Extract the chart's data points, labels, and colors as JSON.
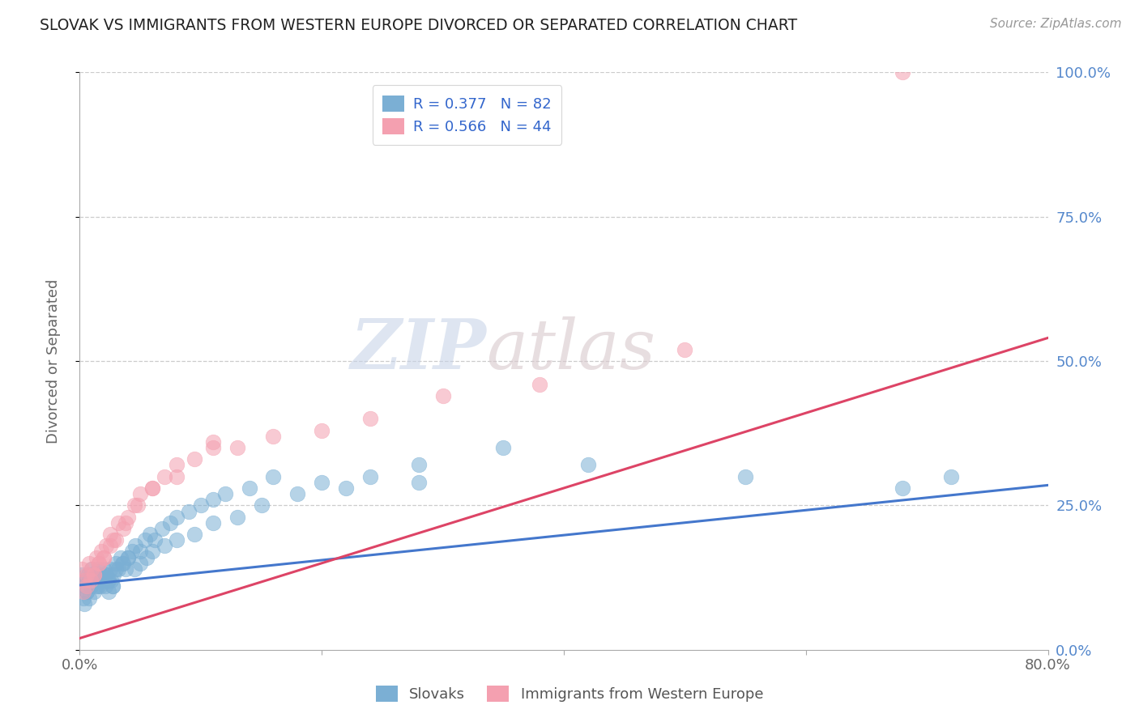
{
  "title": "SLOVAK VS IMMIGRANTS FROM WESTERN EUROPE DIVORCED OR SEPARATED CORRELATION CHART",
  "source": "Source: ZipAtlas.com",
  "ylabel": "Divorced or Separated",
  "xlim": [
    0.0,
    0.8
  ],
  "ylim": [
    0.0,
    1.0
  ],
  "xtick_positions": [
    0.0,
    0.2,
    0.4,
    0.6,
    0.8
  ],
  "xtick_labels": [
    "0.0%",
    "",
    "",
    "",
    "80.0%"
  ],
  "ytick_positions": [
    0.0,
    0.25,
    0.5,
    0.75,
    1.0
  ],
  "ytick_labels_right": [
    "0.0%",
    "25.0%",
    "50.0%",
    "75.0%",
    "100.0%"
  ],
  "blue_R": 0.377,
  "blue_N": 82,
  "pink_R": 0.566,
  "pink_N": 44,
  "blue_color": "#7bafd4",
  "pink_color": "#f4a0b0",
  "blue_line_color": "#4477cc",
  "pink_line_color": "#dd4466",
  "background_color": "#ffffff",
  "grid_color": "#cccccc",
  "title_color": "#222222",
  "axis_color": "#aaaaaa",
  "tick_color": "#666666",
  "legend_label_blue": "Slovaks",
  "legend_label_pink": "Immigrants from Western Europe",
  "blue_scatter_x": [
    0.002,
    0.004,
    0.005,
    0.006,
    0.007,
    0.008,
    0.009,
    0.01,
    0.011,
    0.012,
    0.013,
    0.014,
    0.015,
    0.016,
    0.017,
    0.018,
    0.019,
    0.02,
    0.021,
    0.022,
    0.023,
    0.024,
    0.025,
    0.026,
    0.027,
    0.028,
    0.03,
    0.032,
    0.034,
    0.036,
    0.038,
    0.04,
    0.043,
    0.046,
    0.05,
    0.054,
    0.058,
    0.062,
    0.068,
    0.075,
    0.08,
    0.09,
    0.1,
    0.11,
    0.12,
    0.14,
    0.16,
    0.2,
    0.24,
    0.28,
    0.003,
    0.006,
    0.009,
    0.012,
    0.015,
    0.018,
    0.021,
    0.024,
    0.027,
    0.03,
    0.035,
    0.04,
    0.045,
    0.05,
    0.055,
    0.06,
    0.07,
    0.08,
    0.095,
    0.11,
    0.13,
    0.15,
    0.18,
    0.22,
    0.28,
    0.35,
    0.42,
    0.55,
    0.68,
    0.72,
    0.004,
    0.008
  ],
  "blue_scatter_y": [
    0.13,
    0.11,
    0.12,
    0.1,
    0.13,
    0.12,
    0.11,
    0.14,
    0.12,
    0.1,
    0.13,
    0.11,
    0.14,
    0.12,
    0.11,
    0.13,
    0.12,
    0.14,
    0.11,
    0.13,
    0.12,
    0.1,
    0.14,
    0.12,
    0.11,
    0.13,
    0.15,
    0.14,
    0.16,
    0.15,
    0.14,
    0.16,
    0.17,
    0.18,
    0.17,
    0.19,
    0.2,
    0.19,
    0.21,
    0.22,
    0.23,
    0.24,
    0.25,
    0.26,
    0.27,
    0.28,
    0.3,
    0.29,
    0.3,
    0.32,
    0.09,
    0.1,
    0.11,
    0.12,
    0.11,
    0.12,
    0.13,
    0.12,
    0.11,
    0.14,
    0.15,
    0.16,
    0.14,
    0.15,
    0.16,
    0.17,
    0.18,
    0.19,
    0.2,
    0.22,
    0.23,
    0.25,
    0.27,
    0.28,
    0.29,
    0.35,
    0.32,
    0.3,
    0.28,
    0.3,
    0.08,
    0.09
  ],
  "pink_scatter_x": [
    0.002,
    0.004,
    0.006,
    0.008,
    0.01,
    0.012,
    0.014,
    0.016,
    0.018,
    0.02,
    0.022,
    0.025,
    0.028,
    0.032,
    0.036,
    0.04,
    0.045,
    0.05,
    0.06,
    0.07,
    0.08,
    0.095,
    0.11,
    0.13,
    0.16,
    0.2,
    0.24,
    0.3,
    0.38,
    0.5,
    0.003,
    0.006,
    0.009,
    0.012,
    0.016,
    0.02,
    0.025,
    0.03,
    0.038,
    0.048,
    0.06,
    0.08,
    0.11,
    0.68
  ],
  "pink_scatter_y": [
    0.14,
    0.12,
    0.13,
    0.15,
    0.14,
    0.13,
    0.16,
    0.15,
    0.17,
    0.16,
    0.18,
    0.2,
    0.19,
    0.22,
    0.21,
    0.23,
    0.25,
    0.27,
    0.28,
    0.3,
    0.32,
    0.33,
    0.35,
    0.35,
    0.37,
    0.38,
    0.4,
    0.44,
    0.46,
    0.52,
    0.1,
    0.11,
    0.12,
    0.13,
    0.15,
    0.16,
    0.18,
    0.19,
    0.22,
    0.25,
    0.28,
    0.3,
    0.36,
    1.0
  ],
  "blue_line": {
    "x0": 0.0,
    "x1": 0.8,
    "y0": 0.112,
    "y1": 0.285
  },
  "pink_line": {
    "x0": 0.0,
    "x1": 0.8,
    "y0": 0.02,
    "y1": 0.54
  },
  "watermark_part1": "ZIP",
  "watermark_part2": "atlas",
  "figsize": [
    14.06,
    8.92
  ],
  "dpi": 100
}
